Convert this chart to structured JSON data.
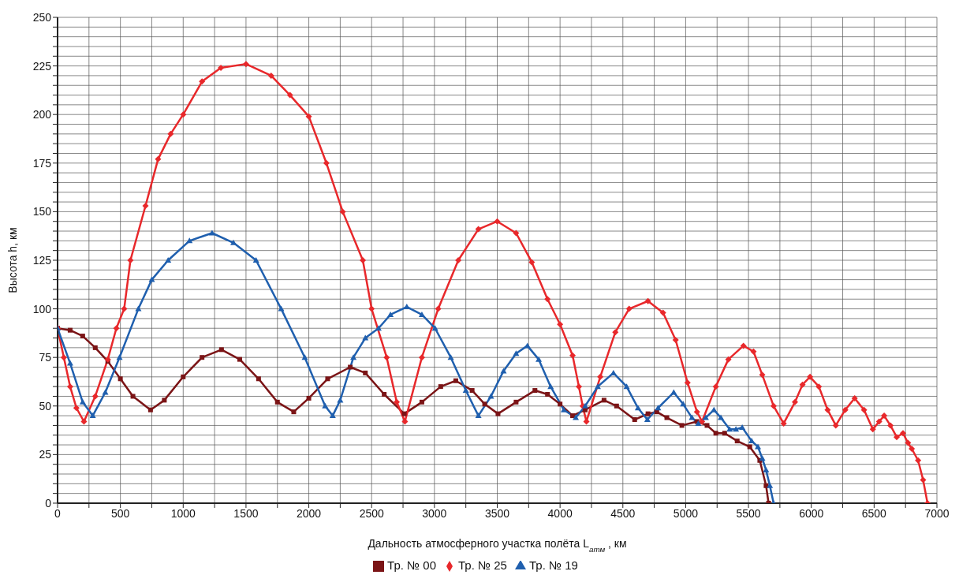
{
  "chart_data": {
    "type": "line",
    "xlabel": "Дальность  атмосферного участка  полёта L$_{атм}$ , км",
    "ylabel": "Высота  h, км",
    "xlim": [
      0,
      7000
    ],
    "xticks": [
      0,
      {
        "value": 250,
        "label": null
      },
      500,
      {
        "value": 750,
        "label": null
      },
      1000,
      {
        "value": 1250,
        "label": null
      },
      1500,
      {
        "value": 1750,
        "label": null
      },
      2000,
      {
        "value": 2250,
        "label": null
      },
      2500,
      {
        "value": 2750,
        "label": null
      },
      3000,
      {
        "value": 3250,
        "label": null
      },
      3500,
      {
        "value": 3750,
        "label": null
      },
      4000,
      {
        "value": 4250,
        "label": null
      },
      4500,
      {
        "value": 4750,
        "label": null
      },
      5000,
      {
        "value": 5250,
        "label": null
      },
      5500,
      {
        "value": 5750,
        "label": null
      },
      6000,
      {
        "value": 6250,
        "label": null
      },
      6500,
      {
        "value": 6750,
        "label": null
      },
      7000
    ],
    "ylim": [
      0,
      250
    ],
    "yticks": [
      0,
      {
        "value": 5,
        "label": null
      },
      {
        "value": 10,
        "label": null
      },
      {
        "value": 15,
        "label": null
      },
      {
        "value": 20,
        "label": null
      },
      25,
      {
        "value": 30,
        "label": null
      },
      {
        "value": 35,
        "label": null
      },
      {
        "value": 40,
        "label": null
      },
      {
        "value": 45,
        "label": null
      },
      50,
      {
        "value": 55,
        "label": null
      },
      {
        "value": 60,
        "label": null
      },
      {
        "value": 65,
        "label": null
      },
      {
        "value": 70,
        "label": null
      },
      75,
      {
        "value": 80,
        "label": null
      },
      {
        "value": 85,
        "label": null
      },
      {
        "value": 90,
        "label": null
      },
      {
        "value": 95,
        "label": null
      },
      100,
      {
        "value": 105,
        "label": null
      },
      {
        "value": 110,
        "label": null
      },
      {
        "value": 115,
        "label": null
      },
      {
        "value": 120,
        "label": null
      },
      125,
      {
        "value": 130,
        "label": null
      },
      {
        "value": 135,
        "label": null
      },
      {
        "value": 140,
        "label": null
      },
      {
        "value": 145,
        "label": null
      },
      150,
      {
        "value": 155,
        "label": null
      },
      {
        "value": 160,
        "label": null
      },
      {
        "value": 165,
        "label": null
      },
      {
        "value": 170,
        "label": null
      },
      175,
      {
        "value": 180,
        "label": null
      },
      {
        "value": 185,
        "label": null
      },
      {
        "value": 190,
        "label": null
      },
      {
        "value": 195,
        "label": null
      },
      200,
      {
        "value": 205,
        "label": null
      },
      {
        "value": 210,
        "label": null
      },
      {
        "value": 215,
        "label": null
      },
      {
        "value": 220,
        "label": null
      },
      225,
      {
        "value": 230,
        "label": null
      },
      {
        "value": 235,
        "label": null
      },
      {
        "value": 240,
        "label": null
      },
      {
        "value": 245,
        "label": null
      },
      250
    ],
    "grid": true,
    "legend": "bottom",
    "series": [
      {
        "name": "Тр. № 00",
        "color": "#7b1416",
        "marker": "square",
        "x": [
          0,
          100,
          200,
          300,
          400,
          500,
          600,
          740,
          850,
          1000,
          1150,
          1305,
          1450,
          1600,
          1750,
          1880,
          2000,
          2150,
          2330,
          2450,
          2600,
          2760,
          2900,
          3050,
          3170,
          3300,
          3400,
          3506,
          3650,
          3800,
          3900,
          4000,
          4100,
          4200,
          4350,
          4450,
          4594,
          4700,
          4770,
          4850,
          4970,
          5090,
          5170,
          5240,
          5310,
          5410,
          5510,
          5590,
          5640,
          5660
        ],
        "values": [
          90,
          89,
          86,
          80,
          73,
          64,
          55,
          48,
          53,
          65,
          75,
          79,
          74,
          64,
          52,
          47,
          54,
          64,
          70,
          67,
          56,
          46,
          52,
          60,
          63,
          58,
          51,
          46,
          52,
          58,
          56,
          51,
          45,
          48,
          53,
          50,
          43,
          46,
          47,
          44,
          40,
          42,
          40,
          36,
          36,
          32,
          29,
          22,
          9,
          0
        ]
      },
      {
        "name": "Тр. № 25",
        "color": "#e8282b",
        "marker": "diamond",
        "x": [
          0,
          50,
          100,
          150,
          210,
          300,
          400,
          468,
          530,
          580,
          700,
          800,
          900,
          1000,
          1150,
          1300,
          1500,
          1700,
          1850,
          2000,
          2140,
          2270,
          2430,
          2500,
          2620,
          2700,
          2765,
          2900,
          3030,
          3190,
          3350,
          3500,
          3650,
          3775,
          3900,
          4000,
          4100,
          4150,
          4180,
          4210,
          4320,
          4440,
          4550,
          4700,
          4820,
          4920,
          5015,
          5090,
          5130,
          5240,
          5340,
          5460,
          5540,
          5610,
          5700,
          5780,
          5870,
          5930,
          5990,
          6060,
          6130,
          6195,
          6270,
          6345,
          6420,
          6490,
          6540,
          6580,
          6630,
          6680,
          6730,
          6770,
          6800,
          6850,
          6890,
          6925
        ],
        "values": [
          90,
          75,
          60,
          49,
          42,
          55,
          74,
          90,
          100,
          125,
          153,
          177,
          190,
          200,
          217,
          224,
          226,
          220,
          210,
          199,
          175,
          150,
          125,
          100,
          75,
          52,
          42,
          75,
          100,
          125,
          141,
          145,
          139,
          124,
          105,
          92,
          76,
          60,
          50,
          42,
          65,
          88,
          100,
          104,
          98,
          84,
          62,
          47,
          42,
          60,
          74,
          81,
          78,
          66,
          50,
          41,
          52,
          61,
          65,
          60,
          48,
          40,
          48,
          54,
          48,
          38,
          42,
          45,
          40,
          34,
          36,
          31,
          28,
          22,
          12,
          0
        ]
      },
      {
        "name": "Тр. № 19",
        "color": "#1f5fae",
        "marker": "triangle",
        "x": [
          0,
          100,
          200,
          280,
          380,
          493,
          643,
          750,
          880,
          1050,
          1230,
          1400,
          1580,
          1780,
          1968,
          2130,
          2190,
          2250,
          2355,
          2450,
          2555,
          2650,
          2780,
          2900,
          3005,
          3130,
          3250,
          3350,
          3450,
          3550,
          3650,
          3740,
          3830,
          3925,
          4030,
          4125,
          4200,
          4300,
          4425,
          4530,
          4620,
          4695,
          4780,
          4905,
          4980,
          5050,
          5100,
          5160,
          5225,
          5280,
          5350,
          5400,
          5450,
          5525,
          5575,
          5610,
          5640,
          5670,
          5700
        ],
        "values": [
          90,
          72,
          52,
          45,
          57,
          75,
          100,
          115,
          125,
          135,
          139,
          134,
          125,
          100,
          75,
          50,
          45,
          53,
          75,
          85,
          90,
          97,
          101,
          97,
          90,
          75,
          58,
          45,
          55,
          68,
          77,
          81,
          74,
          60,
          48,
          44,
          50,
          60,
          67,
          60,
          49,
          43,
          49,
          57,
          51,
          44,
          41,
          44,
          48,
          44,
          38,
          38,
          39,
          32,
          29,
          23,
          17,
          9,
          0
        ]
      }
    ]
  }
}
